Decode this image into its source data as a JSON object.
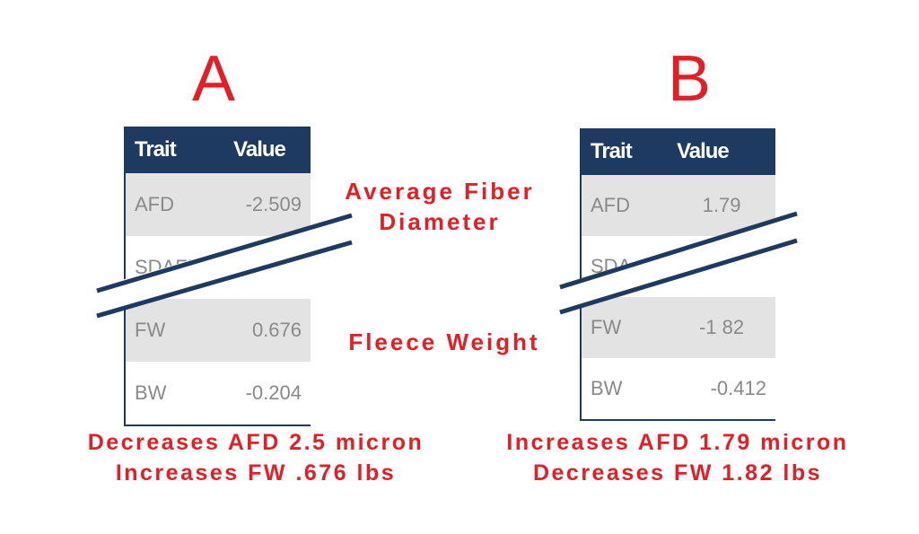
{
  "panel_a": {
    "letter": "A",
    "headers": [
      "Trait",
      "Value"
    ],
    "rows": [
      {
        "trait": "AFD",
        "value": "-2.509"
      },
      {
        "trait": "SDAFD",
        "value": ""
      },
      {
        "trait": "FW",
        "value": "0.676"
      },
      {
        "trait": "BW",
        "value": "-0.204"
      }
    ],
    "summary_line1": "Decreases AFD 2.5 micron",
    "summary_line2": "Increases FW .676 lbs"
  },
  "panel_b": {
    "letter": "B",
    "headers": [
      "Trait",
      "Value"
    ],
    "rows": [
      {
        "trait": "AFD",
        "value": "1.79"
      },
      {
        "trait": "SDA",
        "value": ""
      },
      {
        "trait": "FW",
        "value": "-1 82"
      },
      {
        "trait": "BW",
        "value": "-0.412"
      }
    ],
    "summary_line1": "Increases AFD 1.79 micron",
    "summary_line2": "Decreases FW 1.82 lbs"
  },
  "labels": {
    "afd_line1": "Average Fiber",
    "afd_line2": "Diameter",
    "fleece_weight": "Fleece Weight"
  },
  "colors": {
    "accent_red": "#e31e24",
    "header_navy": "#1f3a60",
    "row_shade": "#e3e3e3"
  }
}
